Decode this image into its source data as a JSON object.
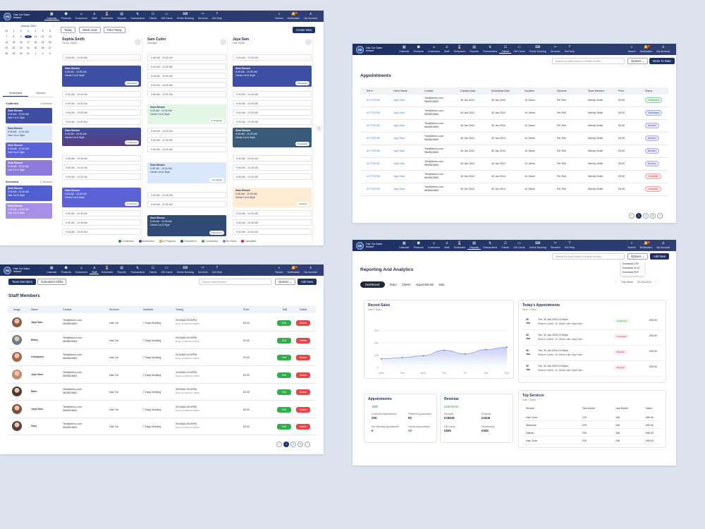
{
  "brand": {
    "initials": "HS",
    "name": "Hair Cut Salon",
    "sub": "Ireland"
  },
  "nav": [
    "Calendar",
    "Products",
    "Customers",
    "Staff",
    "Schedules",
    "Reports",
    "Transactions",
    "Clients",
    "Gift Cards",
    "Online Booking",
    "Services",
    "Get Help"
  ],
  "nav_right": [
    "Search",
    "Notification",
    "My Account"
  ],
  "calendar": {
    "month_label": "January 2024",
    "days": [
      "31",
      "1",
      "2",
      "3",
      "4",
      "5",
      "6",
      "7",
      "8",
      "9",
      "10",
      "11",
      "12",
      "13",
      "14",
      "15",
      "16",
      "17",
      "18",
      "19",
      "20",
      "21",
      "22",
      "23",
      "24",
      "25",
      "26",
      "27",
      "28",
      "29",
      "30",
      "31",
      "1",
      "2",
      "3"
    ],
    "selected_day": "10",
    "tabs": [
      "Scheduled",
      "Booked"
    ],
    "confirmed_label": "Confirmed",
    "confirmed_count": "4 Services",
    "scheduled_label": "Scheduled",
    "scheduled_count": "2 Services",
    "side_appts": [
      {
        "name": "Sam Brown",
        "time": "9:45 AM - 10:30 AM",
        "service": "Hair Cut & Style",
        "color": "#3d4ea3"
      },
      {
        "name": "Sam Brown",
        "time": "9:45 AM - 10:30 AM",
        "service": "Hair Cut & Style",
        "color": "#dbe7fb"
      },
      {
        "name": "Sam Brown",
        "time": "9:45 AM - 10:30 AM",
        "service": "Hair Cut & Style",
        "color": "#5b61d6"
      },
      {
        "name": "Sam Brown",
        "time": "9:45 AM - 10:30 AM",
        "service": "Hair Cut & Style",
        "color": "#8e7cdc"
      },
      {
        "name": "Sam Brown",
        "time": "9:45 AM - 10:30 AM",
        "service": "Hair Cut & Style",
        "color": "#4f5fd0"
      },
      {
        "name": "Sam Brown",
        "time": "9:45 AM - 10:30 AM",
        "service": "Hair Cut & Style",
        "color": "#a78ee6"
      }
    ],
    "buttons": {
      "today": "Today",
      "week": "Week View",
      "print": "Print Today",
      "create": "Create New"
    },
    "staff": [
      {
        "name": "Sophia Smith",
        "role": "Senior Stylist"
      },
      {
        "name": "Sam Cutter",
        "role": "Manager"
      },
      {
        "name": "Jaya Sam",
        "role": "Hair Stylist"
      }
    ],
    "slot_time": "9:45 AM - 10:30 AM",
    "block": {
      "name": "Sam Brown",
      "time": "9:45 AM - 10:30 AM",
      "service": "Gents Cut & Style"
    },
    "tags": {
      "scheduled": "Scheduled",
      "confirmed": "Confirmed",
      "progress": "In Progress",
      "completed": "Completed",
      "checkedin": "Checked-In",
      "checkin": "Check In"
    },
    "legend": [
      "Confirmed",
      "Scheduled",
      "In Progress",
      "Checked-In",
      "Completed",
      "No Show",
      "Cancelled"
    ]
  },
  "appointments": {
    "title": "Appointments",
    "search_placeholder": "Search by name email or mobile number",
    "options": "Options",
    "date_button": "Move To Date",
    "headers": [
      "Ref #",
      "Client Name",
      "Contact",
      "Created Date",
      "Scheduled Date",
      "Duration",
      "Services",
      "Team Member",
      "Price",
      "Status"
    ],
    "rows": [
      {
        "ref": "#C7752798",
        "client": "Jaya Sam",
        "email": "Test@demo.com",
        "phone": "9845824663",
        "created": "26 Jan 2024",
        "scheduled": "30 Jan 2024",
        "duration": "1h 15min",
        "service": "Per Roll",
        "member": "Wendy Smith",
        "price": "£5.00",
        "status": "Confirmed"
      },
      {
        "ref": "#C7752798",
        "client": "Jaya Sam",
        "email": "Test@demo.com",
        "phone": "9845824663",
        "created": "26 Jan 2024",
        "scheduled": "30 Jan 2024",
        "duration": "1h 15min",
        "service": "Per Roll",
        "member": "Wendy Smith",
        "price": "£5.00",
        "status": "Scheduled"
      },
      {
        "ref": "#C7752798",
        "client": "Jaya Sam",
        "email": "Test@demo.com",
        "phone": "9845824663",
        "created": "26 Jan 2024",
        "scheduled": "30 Jan 2024",
        "duration": "1h 15min",
        "service": "Per Roll",
        "member": "Wendy Smith",
        "price": "£5.00",
        "status": "Booked"
      },
      {
        "ref": "#C7752798",
        "client": "Jaya Sam",
        "email": "Test@demo.com",
        "phone": "9845824663",
        "created": "26 Jan 2024",
        "scheduled": "30 Jan 2024",
        "duration": "1h 15min",
        "service": "Per Roll",
        "member": "Wendy Smith",
        "price": "£5.00",
        "status": "Booked"
      },
      {
        "ref": "#C7752798",
        "client": "Jaya Sam",
        "email": "Test@demo.com",
        "phone": "9845824663",
        "created": "26 Jan 2024",
        "scheduled": "30 Jan 2024",
        "duration": "1h 15min",
        "service": "Per Roll",
        "member": "Wendy Smith",
        "price": "£5.00",
        "status": "Booked"
      },
      {
        "ref": "#C7752798",
        "client": "Jaya Sam",
        "email": "Test@demo.com",
        "phone": "9845824663",
        "created": "26 Jan 2024",
        "scheduled": "30 Jan 2024",
        "duration": "1h 15min",
        "service": "Per Roll",
        "member": "Wendy Smith",
        "price": "£5.00",
        "status": "Booked"
      },
      {
        "ref": "#C7752798",
        "client": "Jaya Sam",
        "email": "Test@demo.com",
        "phone": "9845824663",
        "created": "26 Jan 2024",
        "scheduled": "30 Jan 2024",
        "duration": "1h 15min",
        "service": "Per Roll",
        "member": "Wendy Smith",
        "price": "£5.00",
        "status": "Complete"
      },
      {
        "ref": "#C7752798",
        "client": "Jaya Sam",
        "email": "Test@demo.com",
        "phone": "9845824663",
        "created": "26 Jan 2024",
        "scheduled": "30 Jan 2024",
        "duration": "1h 15min",
        "service": "Per Roll",
        "member": "Wendy Smith",
        "price": "£5.00",
        "status": "Complete"
      }
    ],
    "pages": [
      "1",
      "2",
      "3"
    ]
  },
  "staff": {
    "title": "Staff Members",
    "tabs": [
      "Team Members",
      "Scheduled Shifts"
    ],
    "search_placeholder": "Search Staff Member",
    "options": "Options",
    "add": "Add New",
    "headers": [
      "Image",
      "Name",
      "Contact",
      "Services",
      "Available",
      "Timing",
      "Price",
      "Edit",
      "Delete"
    ],
    "rows": [
      {
        "name": "Jaya Sam",
        "email": "Test@demo.com",
        "phone": "9845824663",
        "service": "Hair Cut",
        "avail": "7 Days Working",
        "timing": "09:00AM-09:00PM",
        "brk": "Break 12:00PM-01:00PM",
        "price": "£5.00",
        "color": "#8a5a44"
      },
      {
        "name": "Billey",
        "email": "Test@demo.com",
        "phone": "9845824663",
        "service": "Hair Cut",
        "avail": "7 Days Working",
        "timing": "09:00AM-09:00PM",
        "brk": "Break 12:00PM-01:00PM",
        "price": "£5.00",
        "color": "#6b7a8f"
      },
      {
        "name": "Christpher",
        "email": "Test@demo.com",
        "phone": "9845824663",
        "service": "Hair Cut",
        "avail": "7 Days Working",
        "timing": "09:00AM-09:00PM",
        "brk": "Break 12:00PM-01:00PM",
        "price": "£5.00",
        "color": "#a0674d"
      },
      {
        "name": "Joye Sam",
        "email": "Test@demo.com",
        "phone": "9845824663",
        "service": "Hair Cut",
        "avail": "7 Days Working",
        "timing": "10:00AM-10:00PM",
        "brk": "Break 12:00PM-01:00PM",
        "price": "£5.00",
        "color": "#c28b6b"
      },
      {
        "name": "Mom",
        "email": "Test@demo.com",
        "phone": "9845824663",
        "service": "Hair Cut",
        "avail": "7 Days Working",
        "timing": "09:00AM-09:00PM",
        "brk": "Break 12:00PM-01:00PM",
        "price": "£5.00",
        "color": "#4a3b35"
      },
      {
        "name": "Joya Sam",
        "email": "Test@demo.com",
        "phone": "9845824663",
        "service": "Hair Cut",
        "avail": "7 Days Working",
        "timing": "09:00AM-09:00PM",
        "brk": "Break 12:00PM-01:00PM",
        "price": "£5.00",
        "color": "#7d5140"
      },
      {
        "name": "Gary",
        "email": "Test@demo.com",
        "phone": "9845824663",
        "service": "Hair Cut",
        "avail": "7 Days Working",
        "timing": "09:00AM-09:00PM",
        "brk": "Break 12:00PM-01:00PM",
        "price": "£5.00",
        "color": "#55423a"
      }
    ],
    "edit": "Edit",
    "delete": "Delete",
    "pages": [
      "1",
      "2",
      "3"
    ]
  },
  "reports": {
    "title": "Reporting And Analytics",
    "search_placeholder": "Search by name email or mobile number",
    "options": "Options",
    "add": "Add New",
    "download_menu": [
      "Download CSV",
      "Download XLSX",
      "Download PDF"
    ],
    "tabs": [
      "Dashboard",
      "Team",
      "Clients",
      "Appointments",
      "Sale"
    ],
    "range_label": "This Week",
    "range_date": "30-08-2024",
    "sales": {
      "title": "Recent Sales",
      "sub": "Last 7 Days"
    },
    "today": {
      "title": "Today's Appointments",
      "sub": "Next 7 Days",
      "rows": [
        {
          "day": "30",
          "mon": "Jan",
          "when": "Tue, 30 Jan 2024 12:00pm",
          "who": "Sharon Carter, 1h 15min with Jaya Sam",
          "status": "Confirmed",
          "price": "£95.00"
        },
        {
          "day": "30",
          "mon": "Jan",
          "when": "Tue, 30 Jan 2024 12:00pm",
          "who": "Sharon Carter, 1h 15min with Jaya Sam",
          "status": "Cancelled",
          "price": "£95.00"
        },
        {
          "day": "30",
          "mon": "Jan",
          "when": "Tue, 30 Jan 2024 12:00pm",
          "who": "Sharon Carter, 1h 15min with Jaya Sam",
          "status": "Booked",
          "price": "£95.00"
        },
        {
          "day": "30",
          "mon": "Jan",
          "when": "Tue, 30 Jan 2024 12:00pm",
          "who": "Sharon Carter, 1h 15min with Jaya Sam",
          "status": "Booked",
          "price": "£95.00"
        }
      ]
    },
    "appts_card": {
      "title": "Appointments",
      "total": "1800",
      "k1": "Confirmed Appointment",
      "v1": "200",
      "k2": "Finished Appointment",
      "v2": "80",
      "k3": "Not Showing Appointment",
      "v3": "0",
      "k4": "Cancel Appointment",
      "v4": "10"
    },
    "revenue_card": {
      "title": "Revenue",
      "total": "£28175.00",
      "k1": "Services",
      "v1": "£18645",
      "k2": "Products",
      "v2": "£1545",
      "k3": "Gift Cards",
      "v3": "£845",
      "k4": "Membership",
      "v4": "£645"
    },
    "top": {
      "title": "Top Services",
      "sub": "Last 7 Days",
      "headers": [
        "Service",
        "This Month",
        "Last Month",
        "Sales"
      ],
      "rows": [
        {
          "s": "Hair Color",
          "a": "225",
          "b": "158",
          "c": "£85.00"
        },
        {
          "s": "Manicure",
          "a": "225",
          "b": "158",
          "c": "£85.00"
        },
        {
          "s": "Haircut",
          "a": "225",
          "b": "158",
          "c": "£85.00"
        },
        {
          "s": "Hair Color",
          "a": "225",
          "b": "158",
          "c": "£85.00"
        }
      ]
    }
  },
  "chart_data": {
    "type": "area",
    "title": "Recent Sales",
    "x": [
      "Mon",
      "Tue",
      "Wed",
      "Thu",
      "Fri",
      "Sat",
      "Sun"
    ],
    "y_ticks": [
      "0",
      "100",
      "200",
      "300"
    ],
    "ylim": [
      0,
      400
    ],
    "series": [
      {
        "values": [
          70,
          80,
          95,
          140,
          110,
          145,
          165
        ]
      }
    ]
  }
}
